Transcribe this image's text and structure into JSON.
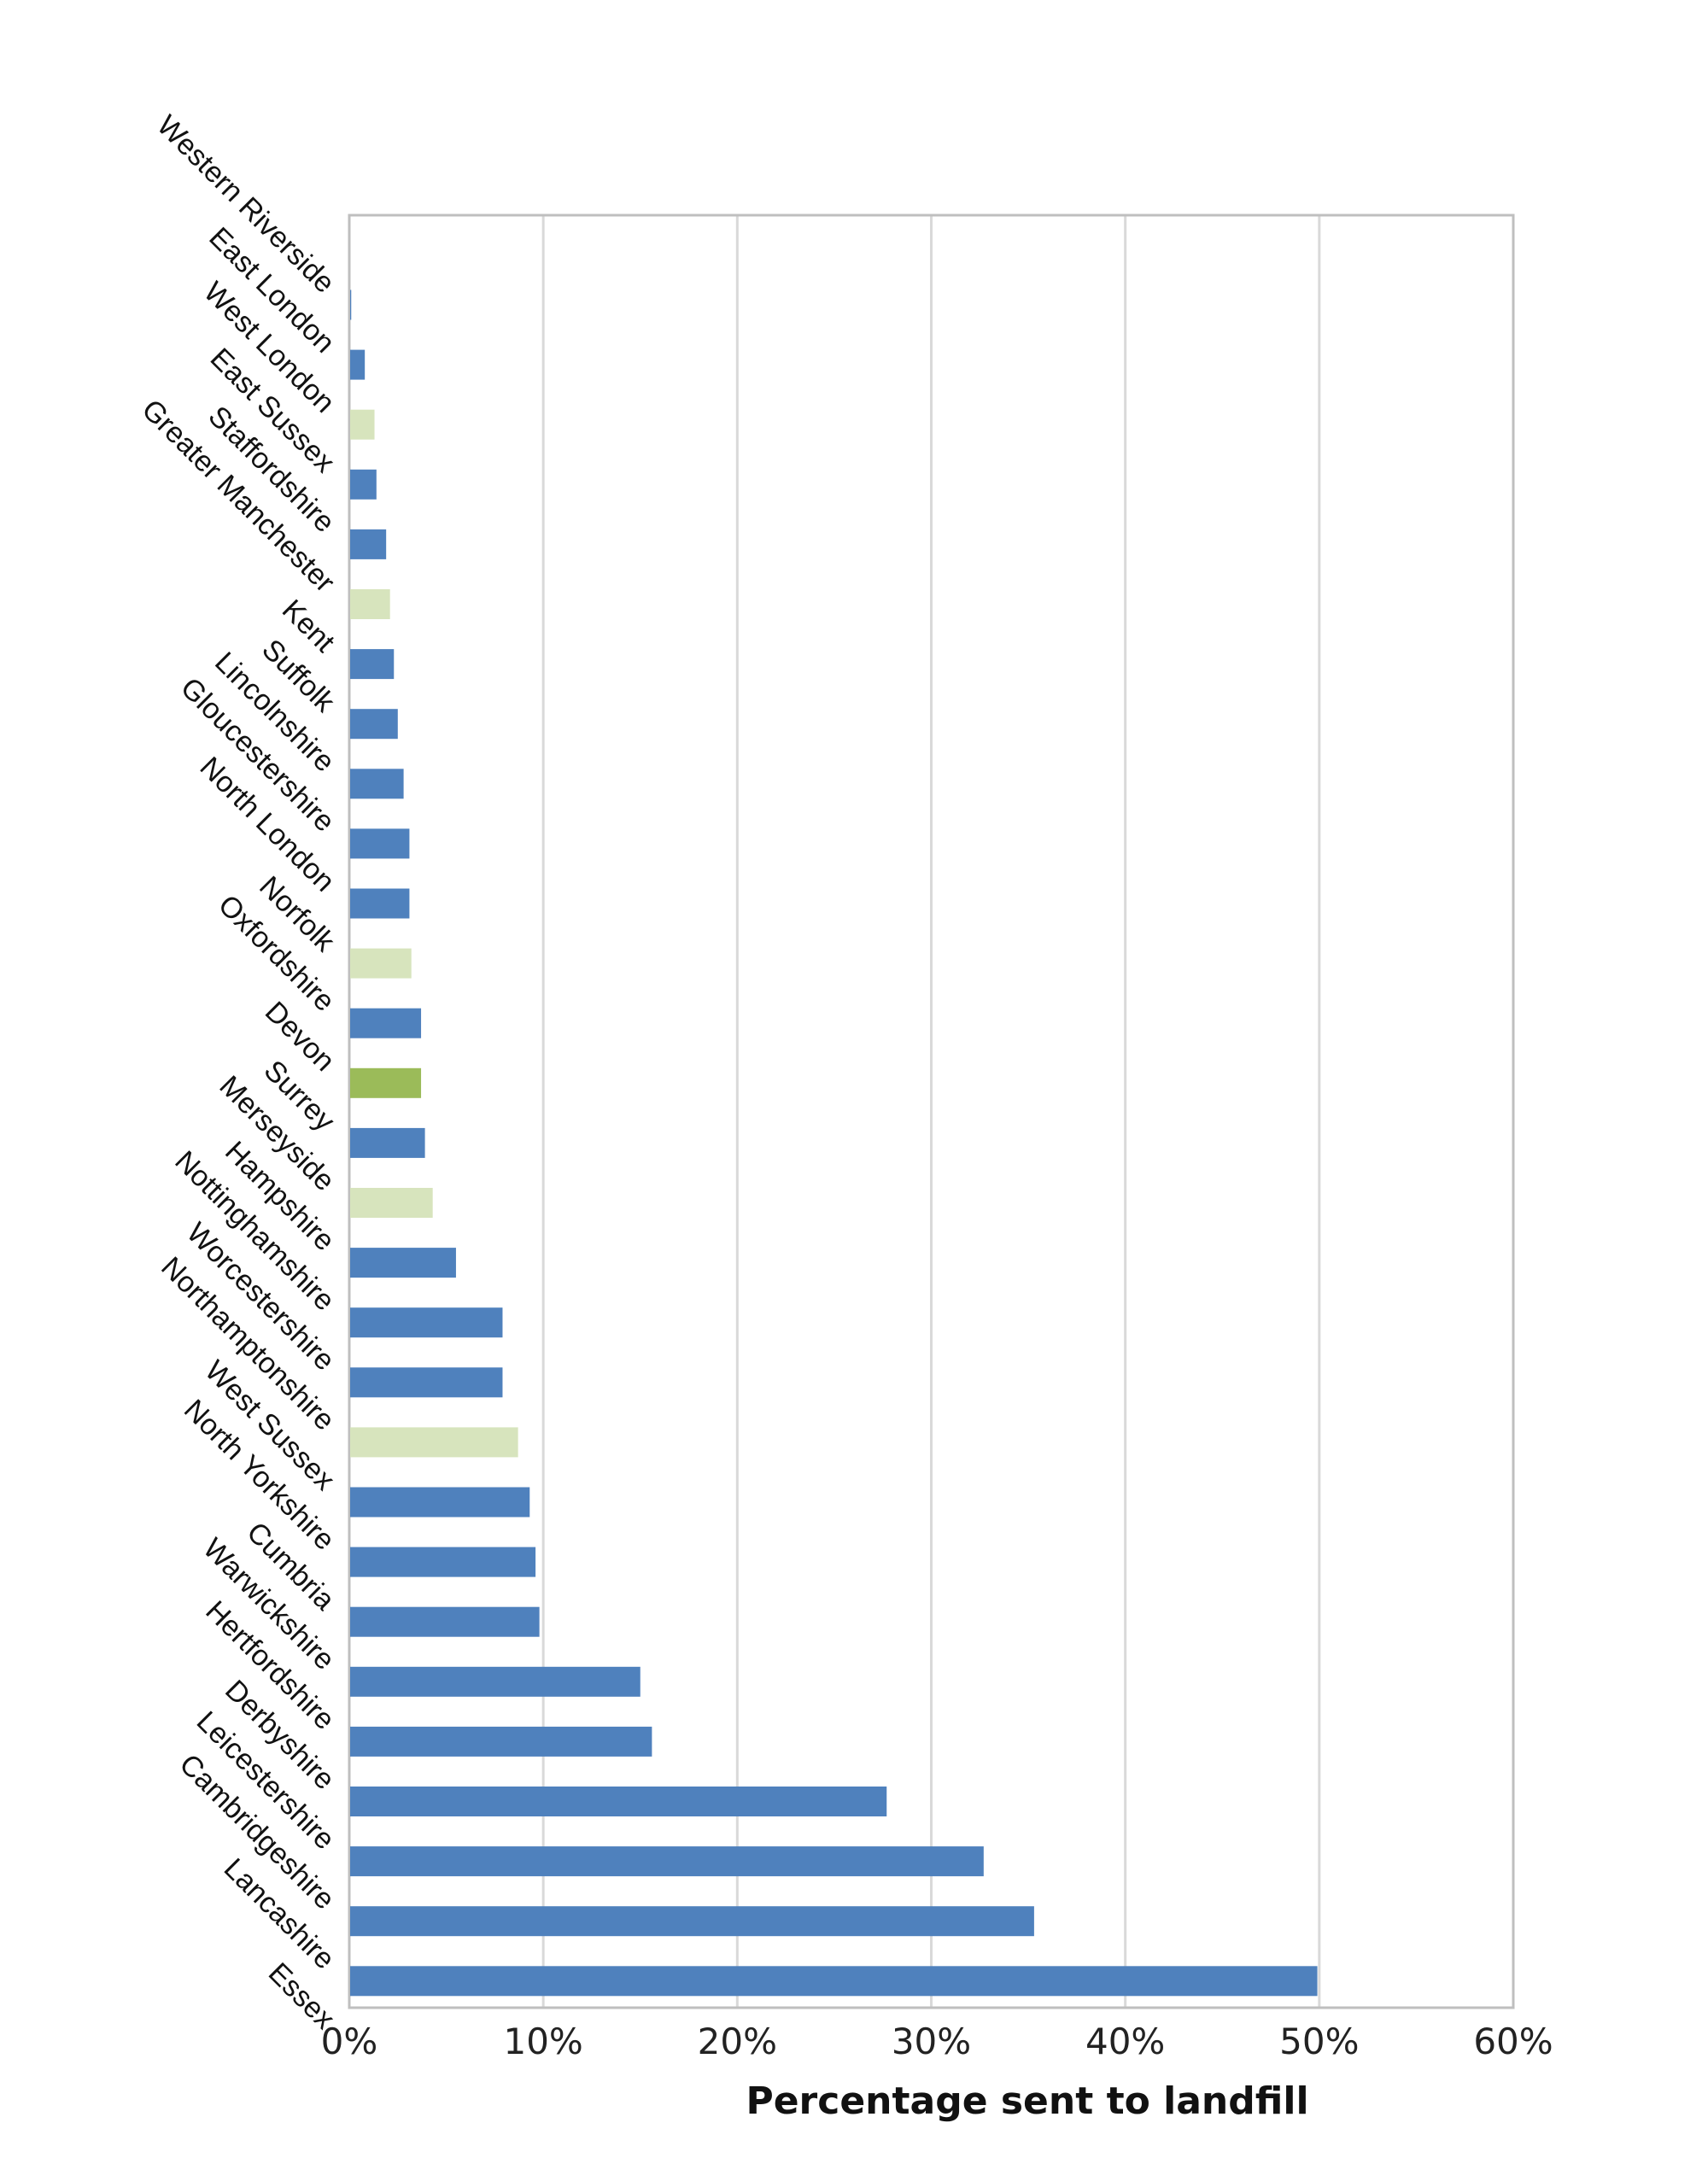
{
  "chart_data": {
    "type": "bar",
    "orientation": "horizontal",
    "xlabel": "Percentage sent to landfill",
    "xlim": [
      0,
      60
    ],
    "ticks": [
      "0%",
      "10%",
      "20%",
      "30%",
      "40%",
      "50%",
      "60%"
    ],
    "grid": true,
    "legend": "none",
    "colors": {
      "blue": "#4f81bd",
      "pale_green": "#d7e4bd",
      "green": "#9bbb59"
    },
    "categories": [
      "Western Riverside",
      "East London",
      "West London",
      "East Sussex",
      "Staffordshire",
      "Greater Manchester",
      "Kent",
      "Suffolk",
      "Lincolnshire",
      "Gloucestershire",
      "North London",
      "Norfolk",
      "Oxfordshire",
      "Devon",
      "Surrey",
      "Merseyside",
      "Hampshire",
      "Nottinghamshire",
      "Worcestershire",
      "Northamptonshire",
      "West Sussex",
      "North Yorkshire",
      "Cumbria",
      "Warwickshire",
      "Hertfordshire",
      "Derbyshire",
      "Leicestershire",
      "Cambridgeshire",
      "Lancashire",
      "Essex"
    ],
    "values": [
      0.1,
      0.8,
      1.3,
      1.4,
      1.9,
      2.1,
      2.3,
      2.5,
      2.8,
      3.1,
      3.1,
      3.2,
      3.7,
      3.7,
      3.9,
      4.3,
      5.5,
      7.9,
      7.9,
      8.7,
      9.3,
      9.6,
      9.8,
      15.0,
      15.6,
      27.7,
      32.7,
      35.3,
      49.9,
      0
    ],
    "bar_colors": [
      "blue",
      "blue",
      "pale_green",
      "blue",
      "blue",
      "pale_green",
      "blue",
      "blue",
      "blue",
      "blue",
      "blue",
      "pale_green",
      "blue",
      "green",
      "blue",
      "pale_green",
      "blue",
      "blue",
      "blue",
      "pale_green",
      "blue",
      "blue",
      "blue",
      "blue",
      "blue",
      "blue",
      "blue",
      "blue",
      "blue",
      "blue"
    ]
  }
}
